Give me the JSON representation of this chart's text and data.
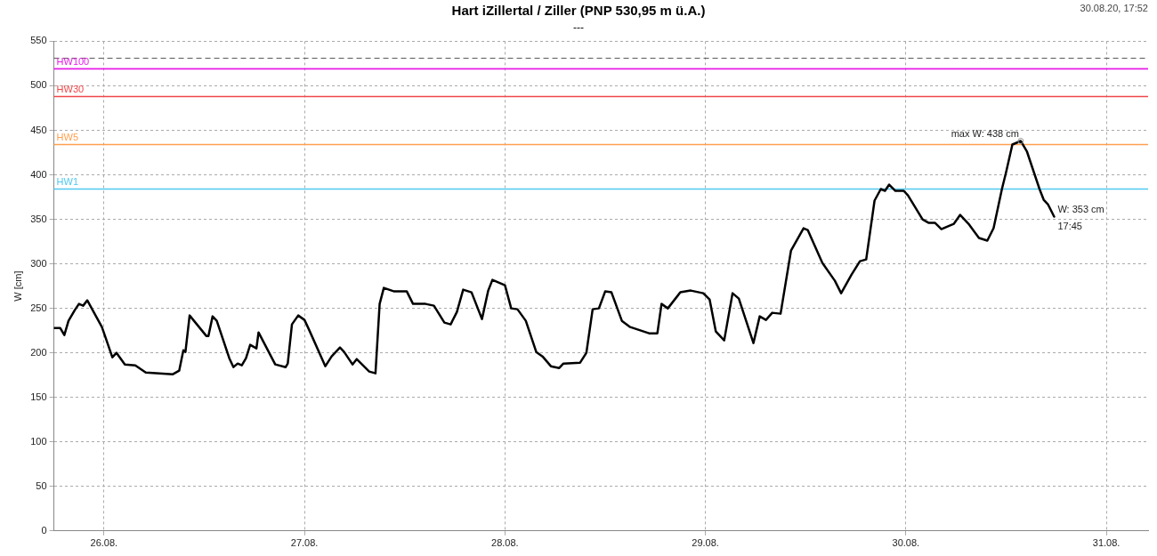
{
  "chart_data": {
    "type": "line",
    "title": "Hart iZillertal / Ziller (PNP 530,95 m ü.A.)",
    "subtitle": "---",
    "ylabel": "W [cm]",
    "x": [
      "--08-25T18:00",
      "--08-25T18:45",
      "--08-25T19:15",
      "--08-25T19:45",
      "--08-25T20:30",
      "--08-25T21:00",
      "--08-25T21:30",
      "--08-25T22:00",
      "--08-25T23:45",
      "--08-26T01:00",
      "--08-26T01:30",
      "--08-26T02:30",
      "--08-26T03:45",
      "--08-26T05:00",
      "--08-26T08:15",
      "--08-26T09:00",
      "--08-26T09:30",
      "--08-26T09:45",
      "--08-26T10:15",
      "--08-26T12:15",
      "--08-26T12:30",
      "--08-26T13:00",
      "--08-26T13:30",
      "--08-26T15:00",
      "--08-26T15:30",
      "--08-26T16:00",
      "--08-26T16:30",
      "--08-26T17:00",
      "--08-26T17:30",
      "--08-26T18:15",
      "--08-26T18:30",
      "--08-26T20:30",
      "--08-26T21:45",
      "--08-26T22:00",
      "--08-26T22:30",
      "--08-26T23:15",
      "--08-27T00:00",
      "--08-27T00:30",
      "--08-27T02:30",
      "--08-27T03:15",
      "--08-27T04:15",
      "--08-27T04:45",
      "--08-27T05:45",
      "--08-27T06:15",
      "--08-27T07:45",
      "--08-27T08:30",
      "--08-27T09:00",
      "--08-27T09:30",
      "--08-27T10:45",
      "--08-27T12:15",
      "--08-27T13:00",
      "--08-27T14:30",
      "--08-27T15:30",
      "--08-27T16:45",
      "--08-27T17:30",
      "--08-27T18:15",
      "--08-27T19:00",
      "--08-27T20:00",
      "--08-27T21:15",
      "--08-27T22:00",
      "--08-27T22:30",
      "--08-28T00:00",
      "--08-28T00:45",
      "--08-28T01:30",
      "--08-28T02:30",
      "--08-28T03:45",
      "--08-28T04:30",
      "--08-28T05:30",
      "--08-28T06:30",
      "--08-28T07:00",
      "--08-28T09:00",
      "--08-28T09:45",
      "--08-28T10:30",
      "--08-28T11:15",
      "--08-28T12:00",
      "--08-28T12:45",
      "--08-28T14:00",
      "--08-28T15:00",
      "--08-28T17:15",
      "--08-28T18:15",
      "--08-28T18:45",
      "--08-28T19:30",
      "--08-28T21:00",
      "--08-28T22:15",
      "--08-28T23:45",
      "--08-29T00:30",
      "--08-29T01:15",
      "--08-29T02:15",
      "--08-29T03:15",
      "--08-29T04:00",
      "--08-29T05:45",
      "--08-29T06:30",
      "--08-29T07:15",
      "--08-29T08:00",
      "--08-29T09:00",
      "--08-29T10:15",
      "--08-29T11:45",
      "--08-29T12:15",
      "--08-29T14:00",
      "--08-29T15:30",
      "--08-29T16:15",
      "--08-29T17:30",
      "--08-29T18:30",
      "--08-29T19:15",
      "--08-29T20:15",
      "--08-29T21:00",
      "--08-29T21:30",
      "--08-29T22:00",
      "--08-29T22:45",
      "--08-29T23:45",
      "--08-30T00:15",
      "--08-30T02:00",
      "--08-30T02:45",
      "--08-30T03:30",
      "--08-30T04:15",
      "--08-30T05:45",
      "--08-30T06:30",
      "--08-30T07:30",
      "--08-30T08:45",
      "--08-30T09:45",
      "--08-30T10:30",
      "--08-30T11:30",
      "--08-30T12:00",
      "--08-30T12:45",
      "--08-30T13:45",
      "--08-30T14:30",
      "--08-30T16:00",
      "--08-30T16:30",
      "--08-30T17:00",
      "--08-30T17:45"
    ],
    "series": [
      {
        "color": "#000000",
        "values": [
          228,
          228,
          220,
          236,
          248,
          255,
          253,
          259,
          229,
          195,
          200,
          187,
          186,
          178,
          176,
          180,
          203,
          201,
          242,
          219,
          219,
          241,
          236,
          194,
          184,
          188,
          186,
          194,
          209,
          205,
          223,
          187,
          184,
          188,
          232,
          242,
          237,
          227,
          185,
          196,
          206,
          201,
          187,
          193,
          179,
          177,
          255,
          273,
          269,
          269,
          255,
          255,
          253,
          234,
          232,
          246,
          271,
          268,
          238,
          270,
          282,
          276,
          250,
          249,
          236,
          201,
          196,
          185,
          183,
          188,
          189,
          200,
          249,
          250,
          269,
          268,
          236,
          229,
          222,
          222,
          255,
          250,
          268,
          270,
          267,
          260,
          224,
          214,
          267,
          261,
          211,
          241,
          237,
          245,
          244,
          315,
          340,
          338,
          301,
          281,
          267,
          288,
          303,
          305,
          371,
          384,
          382,
          389,
          382,
          382,
          377,
          350,
          346,
          346,
          339,
          345,
          355,
          345,
          329,
          326,
          340,
          384,
          403,
          434,
          438,
          426,
          384,
          372,
          367,
          353
        ]
      }
    ],
    "xlim": [
      "--08-25T18:00",
      "--08-31T05:00"
    ],
    "xticks": [
      {
        "value": "--08-26",
        "label": "26.08."
      },
      {
        "value": "--08-27",
        "label": "27.08."
      },
      {
        "value": "--08-28",
        "label": "28.08."
      },
      {
        "value": "--08-29",
        "label": "29.08."
      },
      {
        "value": "--08-30",
        "label": "30.08."
      },
      {
        "value": "--08-31",
        "label": "31.08."
      }
    ],
    "ylim": [
      0,
      550
    ],
    "yticks": [
      0,
      50,
      100,
      150,
      200,
      250,
      300,
      350,
      400,
      450,
      500,
      550
    ],
    "ref_lines": [
      {
        "axis": "y",
        "value": 531,
        "label": null,
        "color": "#555555",
        "line_style": "dashed"
      },
      {
        "axis": "y",
        "value": 519,
        "label": "HW100",
        "color": "#e81ce8"
      },
      {
        "axis": "y",
        "value": 488,
        "label": "HW30",
        "color": "#f04848"
      },
      {
        "axis": "y",
        "value": 434,
        "label": "HW5",
        "color": "#ffa050"
      },
      {
        "axis": "y",
        "value": 384,
        "label": "HW1",
        "color": "#50c8f0"
      }
    ],
    "annotations": [
      {
        "text": "max W: 438 cm",
        "x": "--08-30T13:45",
        "y": 438
      },
      {
        "text": "W: 353 cm\n17:45",
        "x": "--08-30T17:45",
        "y": 353
      },
      "30.08.20, 17:52"
    ],
    "grid": true,
    "legend": false,
    "marker": "none",
    "line_style": "solid"
  }
}
